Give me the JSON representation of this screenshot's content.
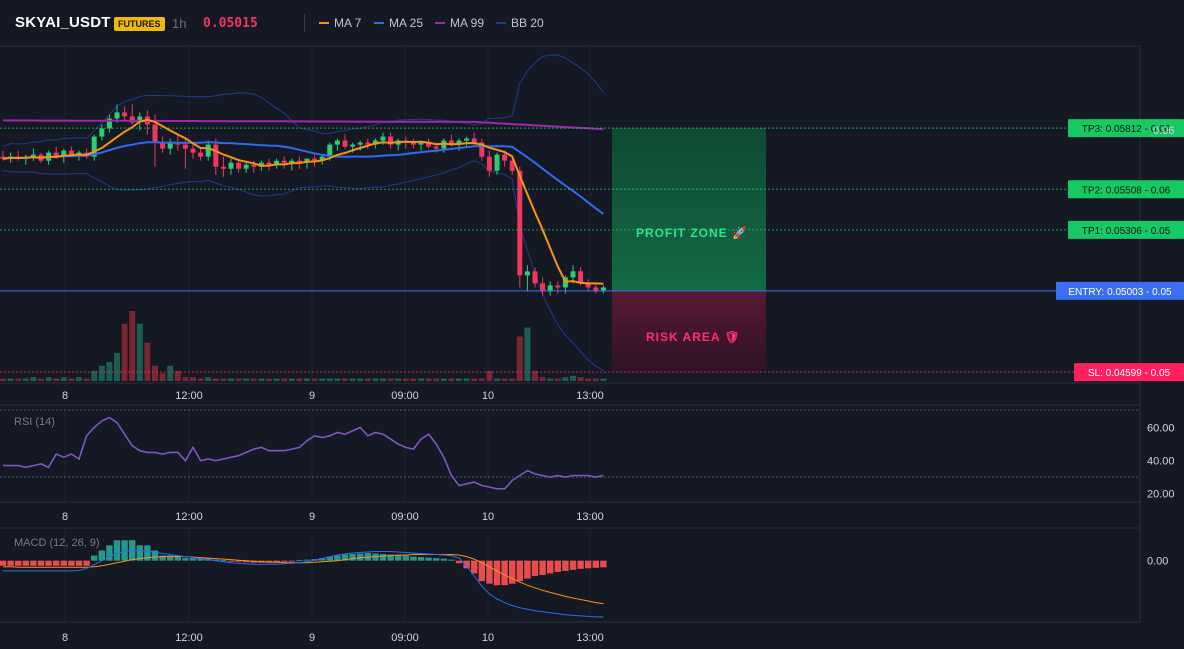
{
  "header": {
    "symbol": "SKYAI_USDT",
    "badge": "FUTURES",
    "timeframe": "1h",
    "price": "0.05015"
  },
  "legend": [
    {
      "label": "MA 7",
      "color": "#f7931a"
    },
    {
      "label": "MA 25",
      "color": "#2e6bf0"
    },
    {
      "label": "MA 99",
      "color": "#9c27b0"
    },
    {
      "label": "BB 20",
      "color": "#1e3a8a"
    }
  ],
  "colors": {
    "up": "#26a69a",
    "down": "#f23661",
    "bull_body": "#2ecc71"
  },
  "time_axis": [
    "8",
    "12:00",
    "9",
    "09:00",
    "10",
    "13:00"
  ],
  "price_axis": [
    "0.06"
  ],
  "levels": [
    {
      "name": "tp3",
      "label": "TP3: 0.05812 - 0.06",
      "value": 0.05812,
      "color": "#17c964",
      "dash": true
    },
    {
      "name": "tp2",
      "label": "TP2: 0.05508 - 0.06",
      "value": 0.05508,
      "color": "#17c964",
      "dash": true
    },
    {
      "name": "tp1",
      "label": "TP1: 0.05306 - 0.05",
      "value": 0.05306,
      "color": "#17c964",
      "dash": true
    },
    {
      "name": "entry",
      "label": "ENTRY: 0.05003 - 0.05",
      "value": 0.05003,
      "color": "#3b6ff0",
      "dash": false
    },
    {
      "name": "sl",
      "label": "SL: 0.04599 - 0.05",
      "value": 0.04599,
      "color": "#ff2060",
      "dash": true
    }
  ],
  "zones": {
    "profit": "PROFIT ZONE 🚀",
    "risk": "RISK AREA 🛡"
  },
  "rsi": {
    "label": "RSI (14)",
    "ticks": [
      "60.00",
      "40.00",
      "20.00"
    ],
    "values": [
      30
    ]
  },
  "macd": {
    "label": "MACD (12, 26, 9)",
    "ticks": [
      "0.00"
    ]
  },
  "chart_data": [
    {
      "type": "candlestick",
      "title": "SKYAI_USDT 1h",
      "ylim": [
        0.0455,
        0.0622
      ],
      "x_labels": [
        "8",
        "12:00",
        "9",
        "09:00",
        "10",
        "13:00"
      ],
      "candles": [
        {
          "o": 0.0567,
          "h": 0.057,
          "l": 0.0565,
          "c": 0.0566
        },
        {
          "o": 0.0566,
          "h": 0.0569,
          "l": 0.0564,
          "c": 0.0567
        },
        {
          "o": 0.0567,
          "h": 0.057,
          "l": 0.0565,
          "c": 0.0566
        },
        {
          "o": 0.0566,
          "h": 0.0568,
          "l": 0.0563,
          "c": 0.0567
        },
        {
          "o": 0.0567,
          "h": 0.0571,
          "l": 0.0565,
          "c": 0.0568
        },
        {
          "o": 0.0568,
          "h": 0.0569,
          "l": 0.0564,
          "c": 0.0565
        },
        {
          "o": 0.0565,
          "h": 0.057,
          "l": 0.0563,
          "c": 0.0569
        },
        {
          "o": 0.0569,
          "h": 0.0572,
          "l": 0.0566,
          "c": 0.0567
        },
        {
          "o": 0.0567,
          "h": 0.0571,
          "l": 0.0564,
          "c": 0.057
        },
        {
          "o": 0.057,
          "h": 0.0572,
          "l": 0.0567,
          "c": 0.0568
        },
        {
          "o": 0.0568,
          "h": 0.057,
          "l": 0.0565,
          "c": 0.0569
        },
        {
          "o": 0.0569,
          "h": 0.0571,
          "l": 0.0566,
          "c": 0.0567
        },
        {
          "o": 0.0567,
          "h": 0.0578,
          "l": 0.0565,
          "c": 0.0577
        },
        {
          "o": 0.0577,
          "h": 0.0583,
          "l": 0.0575,
          "c": 0.0581
        },
        {
          "o": 0.0581,
          "h": 0.0588,
          "l": 0.0579,
          "c": 0.0586
        },
        {
          "o": 0.0586,
          "h": 0.0593,
          "l": 0.0584,
          "c": 0.0589
        },
        {
          "o": 0.0589,
          "h": 0.0592,
          "l": 0.0585,
          "c": 0.0587
        },
        {
          "o": 0.0587,
          "h": 0.0593,
          "l": 0.0583,
          "c": 0.0584
        },
        {
          "o": 0.0584,
          "h": 0.0589,
          "l": 0.058,
          "c": 0.0587
        },
        {
          "o": 0.0587,
          "h": 0.059,
          "l": 0.0578,
          "c": 0.0583
        },
        {
          "o": 0.0583,
          "h": 0.0588,
          "l": 0.0562,
          "c": 0.0574
        },
        {
          "o": 0.0574,
          "h": 0.0577,
          "l": 0.0569,
          "c": 0.0571
        },
        {
          "o": 0.0571,
          "h": 0.0576,
          "l": 0.0568,
          "c": 0.0574
        },
        {
          "o": 0.0574,
          "h": 0.0578,
          "l": 0.057,
          "c": 0.0573
        },
        {
          "o": 0.0573,
          "h": 0.0576,
          "l": 0.0561,
          "c": 0.0571
        },
        {
          "o": 0.0571,
          "h": 0.0573,
          "l": 0.0566,
          "c": 0.0569
        },
        {
          "o": 0.0569,
          "h": 0.0571,
          "l": 0.0565,
          "c": 0.0567
        },
        {
          "o": 0.0567,
          "h": 0.0575,
          "l": 0.0565,
          "c": 0.0573
        },
        {
          "o": 0.0573,
          "h": 0.0576,
          "l": 0.0558,
          "c": 0.0562
        },
        {
          "o": 0.0562,
          "h": 0.0567,
          "l": 0.0557,
          "c": 0.0561
        },
        {
          "o": 0.0561,
          "h": 0.0566,
          "l": 0.0558,
          "c": 0.0564
        },
        {
          "o": 0.0564,
          "h": 0.0566,
          "l": 0.0559,
          "c": 0.0561
        },
        {
          "o": 0.0561,
          "h": 0.0565,
          "l": 0.0559,
          "c": 0.0563
        },
        {
          "o": 0.0563,
          "h": 0.0565,
          "l": 0.0559,
          "c": 0.0562
        },
        {
          "o": 0.0562,
          "h": 0.0565,
          "l": 0.056,
          "c": 0.0564
        },
        {
          "o": 0.0564,
          "h": 0.0566,
          "l": 0.056,
          "c": 0.0563
        },
        {
          "o": 0.0563,
          "h": 0.0566,
          "l": 0.0561,
          "c": 0.0565
        },
        {
          "o": 0.0565,
          "h": 0.0567,
          "l": 0.0561,
          "c": 0.0564
        },
        {
          "o": 0.0564,
          "h": 0.0566,
          "l": 0.056,
          "c": 0.0565
        },
        {
          "o": 0.0565,
          "h": 0.0567,
          "l": 0.0561,
          "c": 0.0564
        },
        {
          "o": 0.0564,
          "h": 0.0566,
          "l": 0.0561,
          "c": 0.0566
        },
        {
          "o": 0.0566,
          "h": 0.0568,
          "l": 0.0562,
          "c": 0.0565
        },
        {
          "o": 0.0565,
          "h": 0.0568,
          "l": 0.0563,
          "c": 0.0567
        },
        {
          "o": 0.0567,
          "h": 0.0574,
          "l": 0.0565,
          "c": 0.0573
        },
        {
          "o": 0.0573,
          "h": 0.0576,
          "l": 0.057,
          "c": 0.0575
        },
        {
          "o": 0.0575,
          "h": 0.0578,
          "l": 0.0571,
          "c": 0.0572
        },
        {
          "o": 0.0572,
          "h": 0.0574,
          "l": 0.0569,
          "c": 0.0573
        },
        {
          "o": 0.0573,
          "h": 0.0575,
          "l": 0.057,
          "c": 0.0574
        },
        {
          "o": 0.0574,
          "h": 0.0576,
          "l": 0.0571,
          "c": 0.0573
        },
        {
          "o": 0.0573,
          "h": 0.0576,
          "l": 0.0571,
          "c": 0.0575
        },
        {
          "o": 0.0575,
          "h": 0.0579,
          "l": 0.0573,
          "c": 0.0577
        },
        {
          "o": 0.0577,
          "h": 0.0579,
          "l": 0.0571,
          "c": 0.0573
        },
        {
          "o": 0.0573,
          "h": 0.0576,
          "l": 0.057,
          "c": 0.0575
        },
        {
          "o": 0.0575,
          "h": 0.0577,
          "l": 0.0571,
          "c": 0.0574
        },
        {
          "o": 0.0574,
          "h": 0.0576,
          "l": 0.0571,
          "c": 0.0573
        },
        {
          "o": 0.0573,
          "h": 0.0575,
          "l": 0.057,
          "c": 0.0574
        },
        {
          "o": 0.0574,
          "h": 0.0576,
          "l": 0.0571,
          "c": 0.0572
        },
        {
          "o": 0.0572,
          "h": 0.0574,
          "l": 0.0569,
          "c": 0.0571
        },
        {
          "o": 0.0571,
          "h": 0.0576,
          "l": 0.0569,
          "c": 0.0575
        },
        {
          "o": 0.0575,
          "h": 0.0578,
          "l": 0.0572,
          "c": 0.0573
        },
        {
          "o": 0.0573,
          "h": 0.0576,
          "l": 0.057,
          "c": 0.0575
        },
        {
          "o": 0.0575,
          "h": 0.0577,
          "l": 0.0572,
          "c": 0.0576
        },
        {
          "o": 0.0576,
          "h": 0.0579,
          "l": 0.0573,
          "c": 0.0574
        },
        {
          "o": 0.0574,
          "h": 0.0576,
          "l": 0.0565,
          "c": 0.0567
        },
        {
          "o": 0.0567,
          "h": 0.057,
          "l": 0.0557,
          "c": 0.056
        },
        {
          "o": 0.056,
          "h": 0.0569,
          "l": 0.0558,
          "c": 0.0568
        },
        {
          "o": 0.0568,
          "h": 0.057,
          "l": 0.0562,
          "c": 0.0565
        },
        {
          "o": 0.0565,
          "h": 0.0567,
          "l": 0.0558,
          "c": 0.056
        },
        {
          "o": 0.056,
          "h": 0.0562,
          "l": 0.0502,
          "c": 0.0508
        },
        {
          "o": 0.0508,
          "h": 0.0513,
          "l": 0.05,
          "c": 0.051
        },
        {
          "o": 0.051,
          "h": 0.0512,
          "l": 0.0502,
          "c": 0.0504
        },
        {
          "o": 0.0504,
          "h": 0.0507,
          "l": 0.0498,
          "c": 0.05
        },
        {
          "o": 0.05,
          "h": 0.0505,
          "l": 0.0498,
          "c": 0.0503
        },
        {
          "o": 0.0503,
          "h": 0.0505,
          "l": 0.0499,
          "c": 0.0502
        },
        {
          "o": 0.0502,
          "h": 0.0508,
          "l": 0.0499,
          "c": 0.0507
        },
        {
          "o": 0.0507,
          "h": 0.0513,
          "l": 0.0504,
          "c": 0.051
        },
        {
          "o": 0.051,
          "h": 0.0512,
          "l": 0.0503,
          "c": 0.0504
        },
        {
          "o": 0.0504,
          "h": 0.0506,
          "l": 0.05,
          "c": 0.0502
        },
        {
          "o": 0.0502,
          "h": 0.0504,
          "l": 0.0499,
          "c": 0.05
        },
        {
          "o": 0.05,
          "h": 0.0503,
          "l": 0.0499,
          "c": 0.0502
        }
      ],
      "volume": [
        2,
        2,
        2,
        2,
        3,
        2,
        3,
        2,
        3,
        2,
        3,
        2,
        8,
        12,
        15,
        22,
        45,
        55,
        45,
        30,
        12,
        6,
        12,
        8,
        3,
        3,
        2,
        3,
        2,
        2,
        2,
        2,
        2,
        2,
        2,
        2,
        2,
        2,
        2,
        2,
        2,
        2,
        2,
        2,
        2,
        2,
        2,
        2,
        2,
        2,
        2,
        2,
        2,
        2,
        2,
        2,
        2,
        2,
        2,
        2,
        2,
        2,
        2,
        2,
        8,
        2,
        2,
        2,
        35,
        42,
        8,
        3,
        2,
        2,
        3,
        4,
        3,
        2,
        2,
        2
      ]
    },
    {
      "type": "line",
      "title": "RSI (14)",
      "ylim": [
        15,
        70
      ],
      "y_ticks": [
        60,
        40,
        20
      ],
      "values": [
        37,
        37,
        37,
        36,
        37,
        38,
        36,
        44,
        42,
        44,
        41,
        55,
        60,
        64,
        66,
        63,
        56,
        49,
        46,
        45,
        45,
        44,
        45,
        45,
        40,
        48,
        40,
        41,
        40,
        41,
        42,
        43,
        45,
        47,
        48,
        46,
        46,
        46,
        47,
        48,
        52,
        55,
        54,
        55,
        57,
        56,
        58,
        60,
        55,
        57,
        56,
        53,
        50,
        48,
        47,
        53,
        56,
        50,
        42,
        31,
        25,
        26,
        27,
        25,
        24,
        23,
        23,
        28,
        31,
        34,
        32,
        31,
        30,
        31,
        30,
        31,
        31,
        31,
        30,
        31
      ]
    },
    {
      "type": "bar",
      "title": "MACD (12, 26, 9)",
      "ylim": [
        -0.0012,
        0.0006
      ],
      "histogram": [
        -0.0001,
        -0.0001,
        -0.0001,
        -0.0001,
        -0.0001,
        -0.0001,
        -0.0001,
        -0.0001,
        -0.0001,
        -0.0001,
        -0.0001,
        -0.0001,
        0.0001,
        0.0002,
        0.0003,
        0.0004,
        0.0004,
        0.0004,
        0.0003,
        0.0003,
        0.0002,
        0.0001,
        0.0001,
        0.0001,
        5e-05,
        5e-05,
        5e-05,
        5e-05,
        2e-05,
        1e-05,
        -1e-05,
        -2e-05,
        -3e-05,
        -4e-05,
        -4e-05,
        -3e-05,
        -3e-05,
        -2e-05,
        -1e-05,
        1e-05,
        2e-05,
        3e-05,
        5e-05,
        8e-05,
        0.0001,
        0.00012,
        0.00013,
        0.00014,
        0.00015,
        0.00014,
        0.00013,
        0.00012,
        0.00011,
        0.0001,
        8e-05,
        7e-05,
        6e-05,
        5e-05,
        4e-05,
        2e-05,
        -5e-05,
        -0.00015,
        -0.00025,
        -0.0004,
        -0.00045,
        -0.00048,
        -0.00048,
        -0.00045,
        -0.0004,
        -0.00035,
        -0.0003,
        -0.00028,
        -0.00025,
        -0.00022,
        -0.0002,
        -0.00018,
        -0.00016,
        -0.00015,
        -0.00014,
        -0.00013
      ],
      "macd": [
        -0.0002,
        -0.0002,
        -0.0002,
        -0.0002,
        -0.0002,
        -0.0002,
        -0.0002,
        -0.0002,
        -0.0002,
        -0.0002,
        -0.00019,
        -0.00015,
        -8e-05,
        0.0,
        8e-05,
        0.00014,
        0.00018,
        0.0002,
        0.0002,
        0.00019,
        0.00017,
        0.00014,
        0.00012,
        0.0001,
        8e-05,
        6e-05,
        4e-05,
        2e-05,
        0.0,
        -2e-05,
        -4e-05,
        -5e-05,
        -6e-05,
        -7e-05,
        -7e-05,
        -7e-05,
        -7e-05,
        -6e-05,
        -5e-05,
        -4e-05,
        -2e-05,
        1e-05,
        4e-05,
        8e-05,
        0.00011,
        0.00013,
        0.00015,
        0.00016,
        0.00017,
        0.00018,
        0.00018,
        0.00018,
        0.00017,
        0.00016,
        0.00015,
        0.00014,
        0.00013,
        0.00012,
        0.00011,
        0.0001,
        5e-05,
        -0.0001,
        -0.0003,
        -0.0005,
        -0.00065,
        -0.00075,
        -0.00082,
        -0.00088,
        -0.00092,
        -0.00095,
        -0.00098,
        -0.001,
        -0.00102,
        -0.00104,
        -0.00106,
        -0.00107,
        -0.00108,
        -0.00109,
        -0.0011,
        -0.0011
      ],
      "signal": [
        -0.00012,
        -0.00012,
        -0.00013,
        -0.00013,
        -0.00013,
        -0.00013,
        -0.00013,
        -0.00013,
        -0.00013,
        -0.00013,
        -0.00013,
        -0.00013,
        -0.00012,
        -0.0001,
        -7e-05,
        -4e-05,
        -1e-05,
        2e-05,
        4e-05,
        6e-05,
        7e-05,
        8e-05,
        8e-05,
        8e-05,
        8e-05,
        7e-05,
        6e-05,
        5e-05,
        4e-05,
        3e-05,
        2e-05,
        1e-05,
        0.0,
        -1e-05,
        -2e-05,
        -3e-05,
        -3e-05,
        -4e-05,
        -4e-05,
        -4e-05,
        -4e-05,
        -3e-05,
        -2e-05,
        -1e-05,
        0.0,
        2e-05,
        4e-05,
        6e-05,
        7e-05,
        8e-05,
        9e-05,
        0.0001,
        0.00011,
        0.00011,
        0.00012,
        0.00012,
        0.00012,
        0.00012,
        0.00012,
        0.00012,
        0.00011,
        8e-05,
        3e-05,
        -4e-05,
        -0.00012,
        -0.0002,
        -0.00028,
        -0.00035,
        -0.00042,
        -0.00048,
        -0.00053,
        -0.00058,
        -0.00062,
        -0.00066,
        -0.0007,
        -0.00073,
        -0.00076,
        -0.00079,
        -0.00082,
        -0.00084
      ]
    }
  ]
}
